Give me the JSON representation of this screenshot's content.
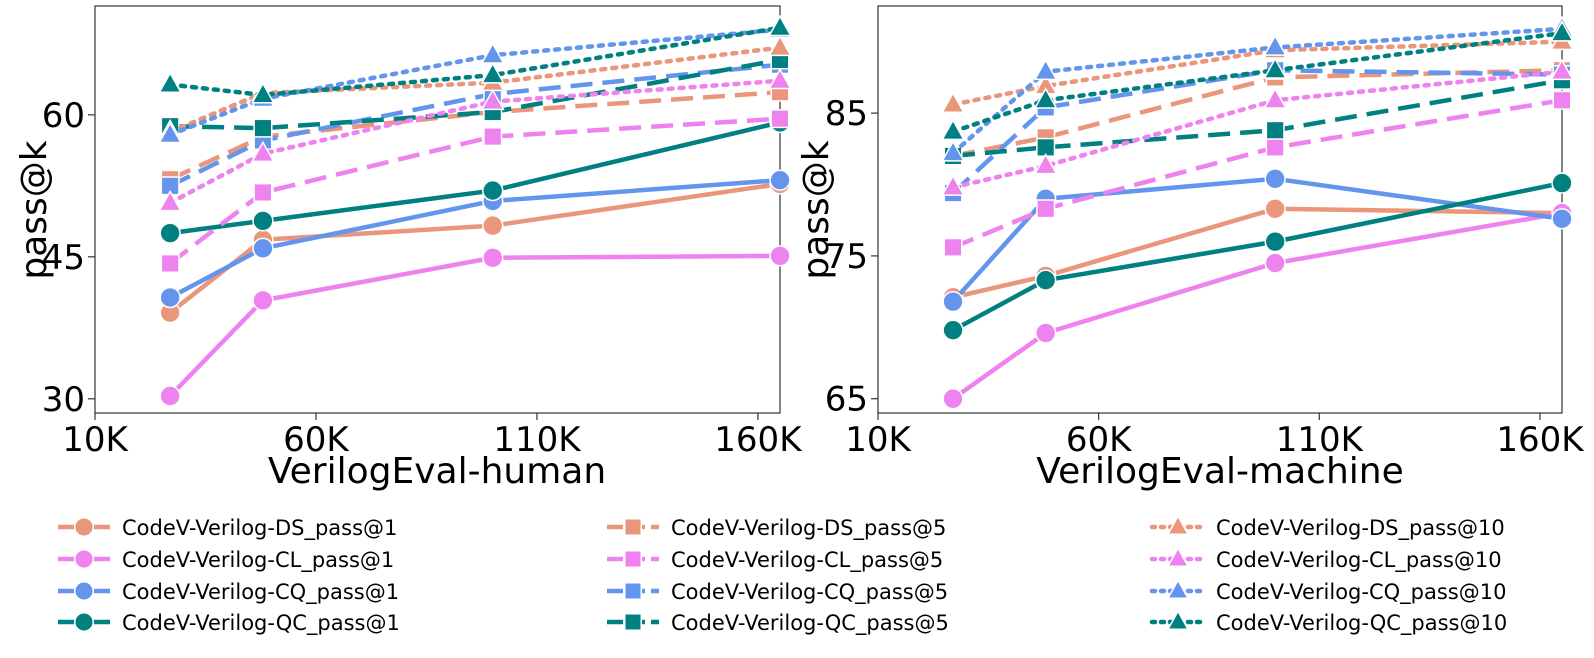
{
  "chart_data": [
    {
      "type": "line",
      "xlabel": "VerilogEval-human",
      "ylabel": "pass@k",
      "xlim": [
        10000,
        165000
      ],
      "ylim": [
        28.5,
        71.5
      ],
      "xticks": [
        10000,
        60000,
        110000,
        160000
      ],
      "xtick_labels": [
        "10K",
        "60K",
        "110K",
        "160K"
      ],
      "yticks": [
        30,
        45,
        60
      ],
      "ytick_labels": [
        "30",
        "45",
        "60"
      ],
      "x": [
        27000,
        48000,
        100000,
        165000
      ],
      "series": [
        {
          "name": "CodeV-Verilog-DS_pass@1",
          "color": "#E9967A",
          "k": "1",
          "marker": "circle",
          "values": [
            39.1,
            46.8,
            48.3,
            52.7
          ]
        },
        {
          "name": "CodeV-Verilog-CL_pass@1",
          "color": "#EE82EE",
          "k": "1",
          "marker": "circle",
          "values": [
            30.3,
            40.4,
            44.9,
            45.1
          ]
        },
        {
          "name": "CodeV-Verilog-CQ_pass@1",
          "color": "#6495ED",
          "k": "1",
          "marker": "circle",
          "values": [
            40.7,
            45.9,
            50.9,
            53.1
          ]
        },
        {
          "name": "CodeV-Verilog-QC_pass@1",
          "color": "#008080",
          "k": "1",
          "marker": "circle",
          "values": [
            47.5,
            48.8,
            52.0,
            59.2
          ]
        },
        {
          "name": "CodeV-Verilog-DS_pass@5",
          "color": "#E9967A",
          "k": "5",
          "marker": "square",
          "values": [
            53.2,
            57.7,
            60.3,
            62.4
          ]
        },
        {
          "name": "CodeV-Verilog-CL_pass@5",
          "color": "#EE82EE",
          "k": "5",
          "marker": "square",
          "values": [
            44.3,
            51.8,
            57.7,
            59.6
          ]
        },
        {
          "name": "CodeV-Verilog-CQ_pass@5",
          "color": "#6495ED",
          "k": "5",
          "marker": "square",
          "values": [
            52.5,
            57.3,
            62.2,
            65.3
          ]
        },
        {
          "name": "CodeV-Verilog-QC_pass@5",
          "color": "#008080",
          "k": "5",
          "marker": "square",
          "values": [
            58.8,
            58.6,
            60.3,
            65.8
          ]
        },
        {
          "name": "CodeV-Verilog-DS_pass@10",
          "color": "#E9967A",
          "k": "10",
          "marker": "triangle",
          "values": [
            58.2,
            62.3,
            63.4,
            67.1
          ]
        },
        {
          "name": "CodeV-Verilog-CL_pass@10",
          "color": "#EE82EE",
          "k": "10",
          "marker": "triangle",
          "values": [
            50.7,
            55.9,
            61.4,
            63.6
          ]
        },
        {
          "name": "CodeV-Verilog-CQ_pass@10",
          "color": "#6495ED",
          "k": "10",
          "marker": "triangle",
          "values": [
            57.9,
            61.7,
            66.3,
            69.0
          ]
        },
        {
          "name": "CodeV-Verilog-QC_pass@10",
          "color": "#008080",
          "k": "10",
          "marker": "triangle",
          "values": [
            63.2,
            62.1,
            64.2,
            69.2
          ]
        }
      ]
    },
    {
      "type": "line",
      "xlabel": "VerilogEval-machine",
      "ylabel": "pass@k",
      "xlim": [
        10000,
        165000
      ],
      "ylim": [
        64.0,
        92.5
      ],
      "xticks": [
        10000,
        60000,
        110000,
        160000
      ],
      "xtick_labels": [
        "10K",
        "60K",
        "110K",
        "160K"
      ],
      "yticks": [
        65,
        75,
        85
      ],
      "ytick_labels": [
        "65",
        "75",
        "85"
      ],
      "x": [
        27000,
        48000,
        100000,
        165000
      ],
      "series": [
        {
          "name": "CodeV-Verilog-DS_pass@1",
          "color": "#E9967A",
          "k": "1",
          "marker": "circle",
          "values": [
            72.1,
            73.6,
            78.3,
            78.0
          ]
        },
        {
          "name": "CodeV-Verilog-CL_pass@1",
          "color": "#EE82EE",
          "k": "1",
          "marker": "circle",
          "values": [
            65.0,
            69.6,
            74.5,
            78.0
          ]
        },
        {
          "name": "CodeV-Verilog-CQ_pass@1",
          "color": "#6495ED",
          "k": "1",
          "marker": "circle",
          "values": [
            71.8,
            79.0,
            80.4,
            77.6
          ]
        },
        {
          "name": "CodeV-Verilog-QC_pass@1",
          "color": "#008080",
          "k": "1",
          "marker": "circle",
          "values": [
            69.8,
            73.3,
            76.0,
            80.1
          ]
        },
        {
          "name": "CodeV-Verilog-DS_pass@5",
          "color": "#E9967A",
          "k": "5",
          "marker": "square",
          "values": [
            82.0,
            83.3,
            87.5,
            88.0
          ]
        },
        {
          "name": "CodeV-Verilog-CL_pass@5",
          "color": "#EE82EE",
          "k": "5",
          "marker": "square",
          "values": [
            75.6,
            78.3,
            82.6,
            85.9
          ]
        },
        {
          "name": "CodeV-Verilog-CQ_pass@5",
          "color": "#6495ED",
          "k": "5",
          "marker": "square",
          "values": [
            79.4,
            85.4,
            88.0,
            87.7
          ]
        },
        {
          "name": "CodeV-Verilog-QC_pass@5",
          "color": "#008080",
          "k": "5",
          "marker": "square",
          "values": [
            82.0,
            82.6,
            83.8,
            87.3
          ]
        },
        {
          "name": "CodeV-Verilog-DS_pass@10",
          "color": "#E9967A",
          "k": "10",
          "marker": "triangle",
          "values": [
            85.6,
            86.9,
            89.4,
            90.0
          ]
        },
        {
          "name": "CodeV-Verilog-CL_pass@10",
          "color": "#EE82EE",
          "k": "10",
          "marker": "triangle",
          "values": [
            79.8,
            81.3,
            85.9,
            87.9
          ]
        },
        {
          "name": "CodeV-Verilog-CQ_pass@10",
          "color": "#6495ED",
          "k": "10",
          "marker": "triangle",
          "values": [
            82.2,
            87.9,
            89.6,
            90.9
          ]
        },
        {
          "name": "CodeV-Verilog-QC_pass@10",
          "color": "#008080",
          "k": "10",
          "marker": "triangle",
          "values": [
            83.7,
            85.9,
            88.0,
            90.6
          ]
        }
      ]
    }
  ],
  "legend": {
    "placement": "bottom",
    "entries": [
      "CodeV-Verilog-DS_pass@1",
      "CodeV-Verilog-CL_pass@1",
      "CodeV-Verilog-CQ_pass@1",
      "CodeV-Verilog-QC_pass@1",
      "CodeV-Verilog-DS_pass@5",
      "CodeV-Verilog-CL_pass@5",
      "CodeV-Verilog-CQ_pass@5",
      "CodeV-Verilog-QC_pass@5",
      "CodeV-Verilog-DS_pass@10",
      "CodeV-Verilog-CL_pass@10",
      "CodeV-Verilog-CQ_pass@10",
      "CodeV-Verilog-QC_pass@10"
    ]
  }
}
